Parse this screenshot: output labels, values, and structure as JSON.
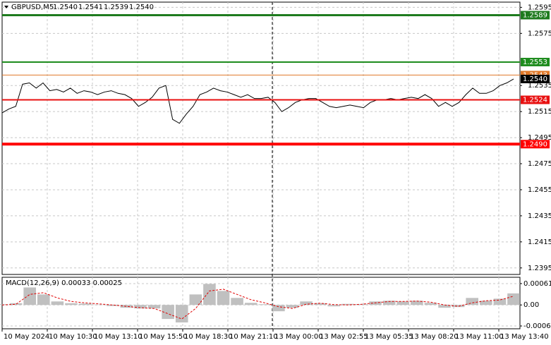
{
  "chart_data": {
    "type": "price-macd",
    "symbol": "GBPUSD,M5",
    "quote": [
      "1.2540",
      "1.2541",
      "1.2539",
      "1.2540"
    ],
    "ylim": [
      1.239,
      1.2599
    ],
    "yticks": [
      1.2595,
      1.2575,
      1.2535,
      1.2515,
      1.2495,
      1.2475,
      1.2455,
      1.2435,
      1.2415,
      1.2395
    ],
    "grid": true,
    "categories": [
      "10 May 2024",
      "10 May 10:30",
      "10 May 13:10",
      "10 May 15:50",
      "10 May 18:30",
      "10 May 21:10",
      "13 May 00:00",
      "13 May 02:55",
      "13 May 05:35",
      "13 May 08:20",
      "13 May 11:00",
      "13 May 13:40"
    ],
    "price": {
      "color": "#000000",
      "values": [
        1.2514,
        1.2517,
        1.2519,
        1.2536,
        1.2537,
        1.2533,
        1.2537,
        1.2531,
        1.2532,
        1.253,
        1.2533,
        1.2529,
        1.2531,
        1.253,
        1.2528,
        1.253,
        1.2531,
        1.2529,
        1.2528,
        1.2525,
        1.2519,
        1.2522,
        1.2526,
        1.2533,
        1.2535,
        1.2509,
        1.2506,
        1.2513,
        1.2519,
        1.2528,
        1.253,
        1.2533,
        1.2531,
        1.253,
        1.2528,
        1.2526,
        1.2528,
        1.2525,
        1.2525,
        1.2526,
        1.2522,
        1.2515,
        1.2518,
        1.2522,
        1.2524,
        1.2525,
        1.2525,
        1.2522,
        1.2519,
        1.2518,
        1.2519,
        1.252,
        1.2519,
        1.2518,
        1.2522,
        1.2524,
        1.2524,
        1.2525,
        1.2524,
        1.2525,
        1.2526,
        1.2525,
        1.2528,
        1.2525,
        1.2519,
        1.2522,
        1.2519,
        1.2522,
        1.2528,
        1.2533,
        1.2529,
        1.2529,
        1.2531,
        1.2535,
        1.2537,
        1.254
      ]
    },
    "levels": [
      {
        "price": 1.2589,
        "color": "#1e7b1e",
        "width": 3
      },
      {
        "price": 1.2553,
        "color": "#1e8c1e",
        "width": 2
      },
      {
        "price": 1.2543,
        "color": "#e07828",
        "width": 1
      },
      {
        "price": 1.2524,
        "color": "#e81010",
        "width": 2
      },
      {
        "price": {
          "value": 1.249,
          "label": "1.2490"
        },
        "color": "#ff0000",
        "width": 4
      }
    ],
    "last": {
      "price": {
        "value": 1.254,
        "label": "1.2540"
      },
      "color": "#000000"
    },
    "macd": {
      "title": "MACD(12,26,9) 0.00033 0.00025",
      "ylim": [
        -0.00068,
        0.00079
      ],
      "yticks": [
        0.00061,
        {
          "value": 0,
          "label": "0.00"
        },
        -0.0006
      ],
      "histogram": {
        "color": "#c0c0c0",
        "values": [
          2e-05,
          5e-05,
          0.0005,
          0.0003,
          0.0001,
          5e-05,
          4e-05,
          1e-05,
          -3e-05,
          -8e-05,
          -0.0001,
          -0.0001,
          -0.0004,
          -0.0005,
          0.0003,
          0.0006,
          0.0004,
          0.0002,
          6e-05,
          2e-05,
          -0.00018,
          -8e-05,
          0.0001,
          5e-05,
          -4e-05,
          3e-05,
          2e-05,
          0.0001,
          0.00012,
          0.0001,
          0.00012,
          6e-05,
          -8e-05,
          -6e-05,
          0.0002,
          0.00012,
          0.00018,
          0.00033
        ]
      },
      "signal": {
        "color": "#e00000",
        "values": [
          0,
          2e-05,
          0.0003,
          0.00035,
          0.0002,
          0.0001,
          6e-05,
          3e-05,
          0,
          -4e-05,
          -8e-05,
          -0.0001,
          -0.00025,
          -0.0004,
          -0.0001,
          0.0004,
          0.00045,
          0.0003,
          0.00015,
          6e-05,
          -5e-05,
          -0.0001,
          2e-05,
          5e-05,
          1e-05,
          0,
          2e-05,
          6e-05,
          0.0001,
          0.0001,
          0.00011,
          8e-05,
          0,
          -4e-05,
          6e-05,
          0.00012,
          0.00014,
          0.00025
        ]
      }
    }
  }
}
